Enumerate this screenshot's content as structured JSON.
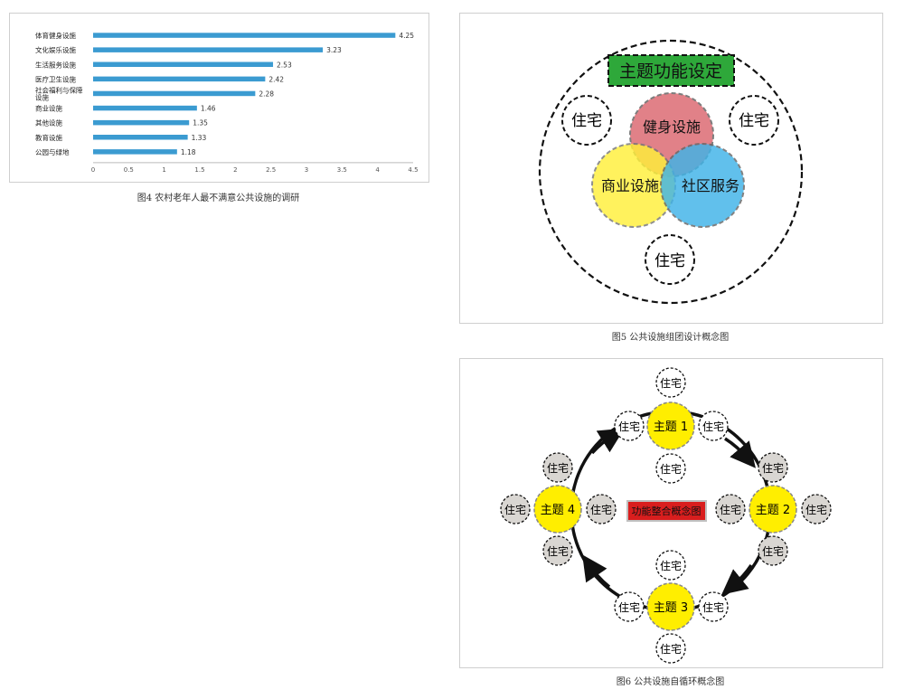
{
  "chart_data": {
    "type": "bar",
    "categories": [
      "体育健身设施",
      "文化娱乐设施",
      "生活服务设施",
      "医疗卫生设施",
      "社会福利与保障设施",
      "商业设施",
      "其他设施",
      "教育设施",
      "公园与绿地"
    ],
    "category_lines": [
      [
        "体育健身设施"
      ],
      [
        "文化娱乐设施"
      ],
      [
        "生活服务设施"
      ],
      [
        "医疗卫生设施"
      ],
      [
        "社会福利与保障",
        "设施"
      ],
      [
        "商业设施"
      ],
      [
        "其他设施"
      ],
      [
        "教育设施"
      ],
      [
        "公园与绿地"
      ]
    ],
    "values": [
      4.25,
      3.23,
      2.53,
      2.42,
      2.28,
      1.46,
      1.35,
      1.33,
      1.18
    ],
    "value_labels": [
      "4.25",
      "3.23",
      "2.53",
      "2.42",
      "2.28",
      "1.46",
      "1.35",
      "1.33",
      "1.18"
    ],
    "xticks": [
      "0",
      "0.5",
      "1",
      "1.5",
      "2",
      "2.5",
      "3",
      "3.5",
      "4",
      "4.5"
    ],
    "xlim": [
      0,
      4.5
    ],
    "orientation": "horizontal",
    "bar_color": "#3b9bd1",
    "grid": false,
    "legend": "none"
  },
  "captions": {
    "fig4": "图4 农村老年人最不满意公共设施的调研",
    "fig5": "图5 公共设施组团设计概念图",
    "fig6": "图6 公共设施自循环概念图"
  },
  "fig5": {
    "title": "主题功能设定",
    "fitness": "健身设施",
    "commercial": "商业设施",
    "community": "社区服务",
    "residence": "住宅",
    "colors": {
      "title_bg": "#2ea83a",
      "fitness": "#e07b82",
      "commercial": "#fff03a",
      "community": "#3fb3e8",
      "overlap": "#e2972e"
    }
  },
  "fig6": {
    "center_label": "功能整合概念图",
    "themes": [
      "主题 1",
      "主题 2",
      "主题 3",
      "主题 4"
    ],
    "residence": "住宅",
    "colors": {
      "theme": "#ffee00",
      "center_bg": "#d91e1e",
      "grey_house": "#d9d6d2"
    }
  }
}
